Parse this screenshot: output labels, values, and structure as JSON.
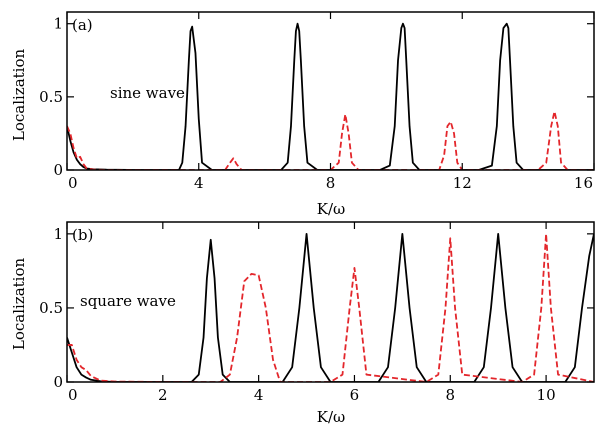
{
  "chart_data": [
    {
      "type": "line",
      "panel_label": "(a)",
      "annotation": "sine wave",
      "xlabel": "K/ω",
      "ylabel": "Localization",
      "xlim": [
        0,
        16
      ],
      "ylim": [
        0,
        1.08
      ],
      "xticks": [
        0,
        4,
        8,
        12,
        16
      ],
      "xtick_labels": [
        "0",
        "4",
        "8",
        "12",
        "16"
      ],
      "yticks": [
        0,
        0.5,
        1
      ],
      "ytick_labels": [
        "0",
        "0.5",
        "1"
      ],
      "grid": false,
      "series": [
        {
          "color": "#000000",
          "dash": "solid",
          "x": [
            0,
            0.1,
            0.2,
            0.3,
            0.4,
            0.5,
            0.6,
            0.8,
            1.2,
            2.0,
            3.0,
            3.4,
            3.5,
            3.6,
            3.7,
            3.75,
            3.8,
            3.9,
            4.0,
            4.1,
            4.4,
            5.0,
            6.0,
            6.5,
            6.7,
            6.8,
            6.9,
            6.95,
            7.0,
            7.05,
            7.1,
            7.2,
            7.3,
            7.6,
            8.5,
            9.5,
            9.8,
            9.95,
            10.05,
            10.15,
            10.2,
            10.25,
            10.3,
            10.4,
            10.5,
            10.7,
            11.5,
            12.5,
            12.9,
            13.05,
            13.15,
            13.25,
            13.35,
            13.4,
            13.45,
            13.55,
            13.65,
            13.85,
            14.5,
            16
          ],
          "y": [
            0.3,
            0.2,
            0.12,
            0.07,
            0.04,
            0.02,
            0.01,
            0.005,
            0.002,
            0.0,
            0.0,
            0.0,
            0.05,
            0.3,
            0.75,
            0.95,
            0.98,
            0.8,
            0.35,
            0.05,
            0.0,
            0.0,
            0.0,
            0.0,
            0.05,
            0.3,
            0.75,
            0.95,
            1.0,
            0.95,
            0.75,
            0.3,
            0.05,
            0.0,
            0.0,
            0.0,
            0.03,
            0.3,
            0.75,
            0.97,
            1.0,
            0.97,
            0.75,
            0.3,
            0.05,
            0.0,
            0.0,
            0.0,
            0.03,
            0.3,
            0.75,
            0.97,
            1.0,
            0.97,
            0.75,
            0.3,
            0.05,
            0.0,
            0.0,
            0.0
          ]
        },
        {
          "color": "#e3262b",
          "dash": "dashed",
          "x": [
            0,
            0.1,
            0.2,
            0.3,
            0.4,
            0.5,
            0.6,
            0.8,
            1.2,
            2.0,
            3.5,
            4.8,
            4.95,
            5.05,
            5.15,
            5.3,
            6.5,
            8.0,
            8.25,
            8.35,
            8.45,
            8.55,
            8.65,
            8.85,
            10.5,
            11.3,
            11.45,
            11.55,
            11.65,
            11.75,
            11.85,
            12.0,
            14.3,
            14.55,
            14.7,
            14.8,
            14.9,
            15.0,
            15.2,
            16
          ],
          "y": [
            0.3,
            0.25,
            0.15,
            0.08,
            0.09,
            0.04,
            0.01,
            0.003,
            0.0,
            0.0,
            0.0,
            0.0,
            0.05,
            0.08,
            0.04,
            0.0,
            0.0,
            0.0,
            0.05,
            0.25,
            0.38,
            0.25,
            0.05,
            0.0,
            0.0,
            0.0,
            0.1,
            0.3,
            0.33,
            0.25,
            0.05,
            0.0,
            0.0,
            0.05,
            0.3,
            0.4,
            0.3,
            0.05,
            0.0,
            0.0
          ]
        }
      ]
    },
    {
      "type": "line",
      "panel_label": "(b)",
      "annotation": "square wave",
      "xlabel": "K/ω",
      "ylabel": "Localization",
      "xlim": [
        0,
        11
      ],
      "ylim": [
        0,
        1.08
      ],
      "xticks": [
        0,
        2,
        4,
        6,
        8,
        10
      ],
      "xtick_labels": [
        "0",
        "2",
        "4",
        "6",
        "8",
        "10"
      ],
      "yticks": [
        0,
        0.5,
        1
      ],
      "ytick_labels": [
        "0",
        "0.5",
        "1"
      ],
      "grid": false,
      "series": [
        {
          "color": "#000000",
          "dash": "solid",
          "x": [
            0,
            0.1,
            0.2,
            0.3,
            0.4,
            0.5,
            0.7,
            1.0,
            1.5,
            2.6,
            2.75,
            2.85,
            2.92,
            3.0,
            3.08,
            3.15,
            3.25,
            3.4,
            4.0,
            4.5,
            4.7,
            4.85,
            5.0,
            5.15,
            5.3,
            5.5,
            6.0,
            6.5,
            6.7,
            6.85,
            7.0,
            7.15,
            7.3,
            7.5,
            8.0,
            8.5,
            8.7,
            8.85,
            9.0,
            9.15,
            9.3,
            9.5,
            10.0,
            10.4,
            10.6,
            10.75,
            10.9,
            11.0
          ],
          "y": [
            0.3,
            0.2,
            0.1,
            0.05,
            0.03,
            0.015,
            0.005,
            0.0,
            0.0,
            0.0,
            0.05,
            0.3,
            0.7,
            0.96,
            0.7,
            0.3,
            0.05,
            0.0,
            0.0,
            0.0,
            0.1,
            0.5,
            1.0,
            0.5,
            0.1,
            0.0,
            0.0,
            0.0,
            0.1,
            0.5,
            1.0,
            0.5,
            0.1,
            0.0,
            0.0,
            0.0,
            0.1,
            0.5,
            1.0,
            0.5,
            0.1,
            0.0,
            0.0,
            0.0,
            0.1,
            0.5,
            0.85,
            1.0
          ]
        },
        {
          "color": "#e3262b",
          "dash": "dashed",
          "x": [
            0,
            0.1,
            0.2,
            0.3,
            0.4,
            0.5,
            0.7,
            1.0,
            2.0,
            3.2,
            3.4,
            3.55,
            3.7,
            3.85,
            4.0,
            4.15,
            4.3,
            4.45,
            5.5,
            5.75,
            5.9,
            6.0,
            6.1,
            6.25,
            7.5,
            7.75,
            7.9,
            8.0,
            8.1,
            8.25,
            9.5,
            9.75,
            9.9,
            10.0,
            10.1,
            10.25,
            11.0
          ],
          "y": [
            0.25,
            0.25,
            0.15,
            0.1,
            0.08,
            0.04,
            0.01,
            0.003,
            0.0,
            0.0,
            0.05,
            0.3,
            0.68,
            0.73,
            0.72,
            0.5,
            0.15,
            0.0,
            0.0,
            0.05,
            0.5,
            0.77,
            0.5,
            0.05,
            0.0,
            0.05,
            0.5,
            0.97,
            0.5,
            0.05,
            0.0,
            0.05,
            0.5,
            1.0,
            0.5,
            0.05,
            0.0
          ]
        }
      ]
    }
  ]
}
